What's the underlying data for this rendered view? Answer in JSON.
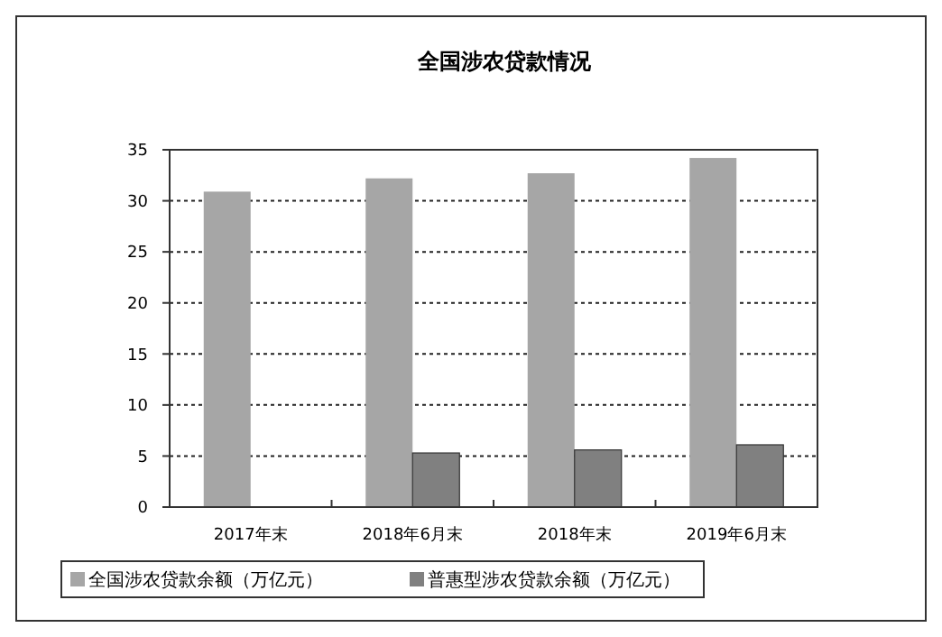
{
  "chart_data": {
    "type": "bar",
    "title": "全国涉农贷款情况",
    "categories": [
      "2017年末",
      "2018年6月末",
      "2018年末",
      "2019年6月末"
    ],
    "series": [
      {
        "name": "全国涉农贷款余额（万亿元）",
        "color": "#a6a6a6",
        "values": [
          30.9,
          32.2,
          32.7,
          34.2
        ]
      },
      {
        "name": "普惠型涉农贷款余额（万亿元）",
        "color": "#808080",
        "values": [
          null,
          5.3,
          5.6,
          6.1
        ]
      }
    ],
    "ylim": [
      0,
      35
    ],
    "yticks": [
      0,
      5,
      10,
      15,
      20,
      25,
      30,
      35
    ],
    "grid": "y",
    "legend": "bottom"
  }
}
